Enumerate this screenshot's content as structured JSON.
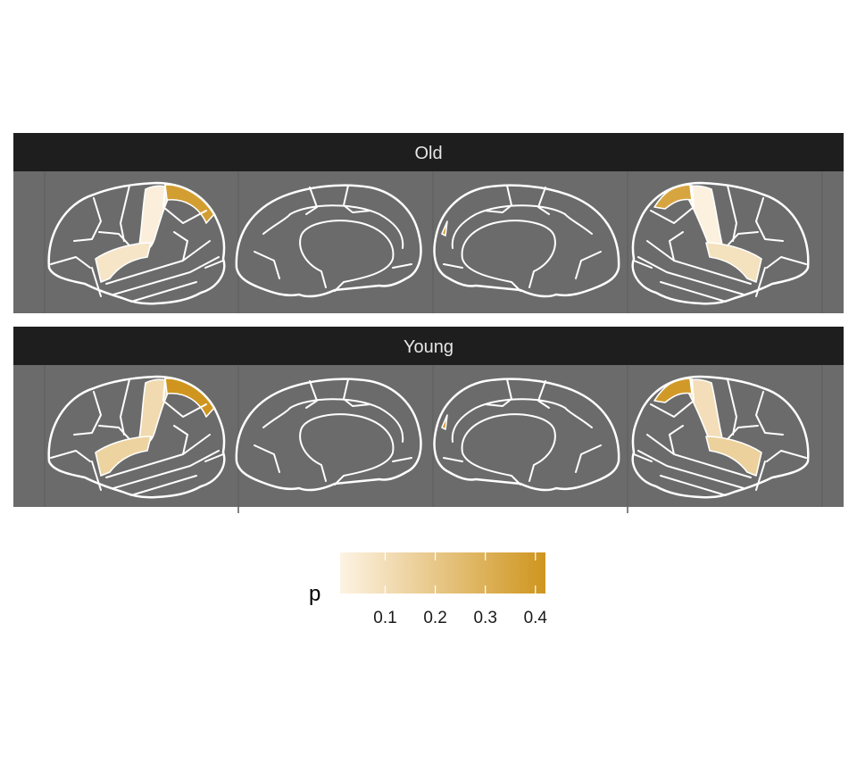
{
  "colors": {
    "panel_bg": "#6b6b6b",
    "strip_bg": "#1e1e1e",
    "strip_text": "#e6e6e6",
    "outline": "#ffffff",
    "scale_low": "#fdf3e4",
    "scale_high": "#cf951e"
  },
  "facets": [
    {
      "label": "Old",
      "regions": {
        "lateral_left_precentral": 0.03,
        "lateral_left_superiorparietal": 0.38,
        "lateral_left_insula": 0.07,
        "medial_left_cuneus": 0.4,
        "lateral_right_precentral": 0.02,
        "lateral_right_superiorparietal": 0.35,
        "lateral_right_insula": 0.09
      }
    },
    {
      "label": "Young",
      "regions": {
        "lateral_left_precentral": 0.12,
        "lateral_left_superiorparietal": 0.42,
        "lateral_left_insula": 0.15,
        "medial_left_cuneus": 0.42,
        "lateral_right_precentral": 0.1,
        "lateral_right_superiorparietal": 0.4,
        "lateral_right_insula": 0.16
      }
    }
  ],
  "chart_data": {
    "type": "heatmap",
    "legend": {
      "title": "p",
      "min": 0.01,
      "max": 0.42,
      "ticks": [
        0.1,
        0.2,
        0.3,
        0.4
      ],
      "tick_labels": [
        "0.1",
        "0.2",
        "0.3",
        "0.4"
      ]
    }
  }
}
